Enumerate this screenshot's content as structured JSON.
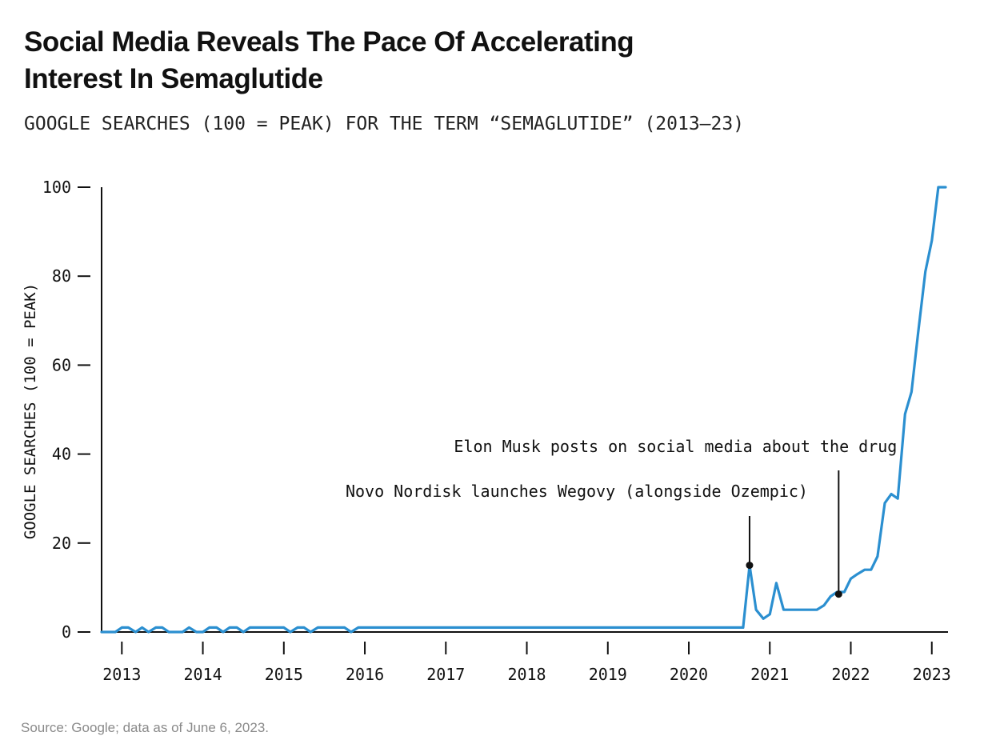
{
  "header": {
    "title_line1": "Social Media Reveals The Pace Of Accelerating",
    "title_line2": "Interest In Semaglutide",
    "subtitle": "GOOGLE SEARCHES (100 = PEAK) FOR THE TERM “SEMAGLUTIDE” (2013–23)"
  },
  "footer": {
    "source": "Source: Google; data as of June 6, 2023."
  },
  "colors": {
    "line": "#2b8fd0",
    "axis": "#111111",
    "marker": "#111111"
  },
  "chart_data": {
    "type": "line",
    "title": "Social Media Reveals The Pace Of Accelerating Interest In Semaglutide",
    "subtitle": "GOOGLE SEARCHES (100 = PEAK) FOR THE TERM “SEMAGLUTIDE” (2013–23)",
    "xlabel": "",
    "ylabel": "GOOGLE SEARCHES (100 = PEAK)",
    "xlim": [
      2012.75,
      2023.2
    ],
    "ylim": [
      0,
      100
    ],
    "xticks": [
      2013,
      2014,
      2015,
      2016,
      2017,
      2018,
      2019,
      2020,
      2021,
      2022,
      2023
    ],
    "xtick_labels": [
      "2013",
      "2014",
      "2015",
      "2016",
      "2017",
      "2018",
      "2019",
      "2020",
      "2021",
      "2022",
      "2023"
    ],
    "yticks": [
      0,
      20,
      40,
      60,
      80,
      100
    ],
    "ytick_labels": [
      "0",
      "20",
      "40",
      "60",
      "80",
      "100"
    ],
    "grid": false,
    "legend": "none",
    "series": [
      {
        "x": [
          2012.75,
          2012.92,
          2013.0,
          2013.08,
          2013.17,
          2013.25,
          2013.33,
          2013.42,
          2013.5,
          2013.58,
          2013.67,
          2013.75,
          2013.83,
          2013.92,
          2014.0,
          2014.08,
          2014.17,
          2014.25,
          2014.33,
          2014.42,
          2014.5,
          2014.58,
          2014.67,
          2014.75,
          2014.83,
          2014.92,
          2015.0,
          2015.08,
          2015.17,
          2015.25,
          2015.33,
          2015.42,
          2015.5,
          2015.58,
          2015.67,
          2015.75,
          2015.83,
          2015.92,
          2016.0,
          2016.08,
          2017.0,
          2018.0,
          2019.0,
          2020.0,
          2020.58,
          2020.67,
          2020.75,
          2020.83,
          2020.92,
          2021.0,
          2021.08,
          2021.17,
          2021.25,
          2021.33,
          2021.42,
          2021.5,
          2021.58,
          2021.67,
          2021.75,
          2021.83,
          2021.92,
          2022.0,
          2022.08,
          2022.17,
          2022.25,
          2022.33,
          2022.42,
          2022.5,
          2022.58,
          2022.67,
          2022.75,
          2022.83,
          2022.92,
          2023.0,
          2023.08,
          2023.17
        ],
        "y": [
          0,
          0,
          1,
          1,
          0,
          1,
          0,
          1,
          1,
          0,
          0,
          0,
          1,
          0,
          0,
          1,
          1,
          0,
          1,
          1,
          0,
          1,
          1,
          1,
          1,
          1,
          1,
          0,
          1,
          1,
          0,
          1,
          1,
          1,
          1,
          1,
          0,
          1,
          1,
          1,
          1,
          1,
          1,
          1,
          1,
          1,
          15,
          5,
          3,
          4,
          11,
          5,
          5,
          5,
          5,
          5,
          5,
          6,
          8,
          9,
          9,
          12,
          13,
          14,
          14,
          17,
          29,
          31,
          30,
          49,
          54,
          67,
          81,
          88,
          100,
          100
        ]
      }
    ],
    "annotations": [
      {
        "text": "Novo Nordisk launches Wegovy (alongside Ozempic)",
        "x": 2020.75,
        "y": 15
      },
      {
        "text": "Elon Musk posts on social media about the drug",
        "x": 2021.85,
        "y": 8.5
      }
    ]
  }
}
